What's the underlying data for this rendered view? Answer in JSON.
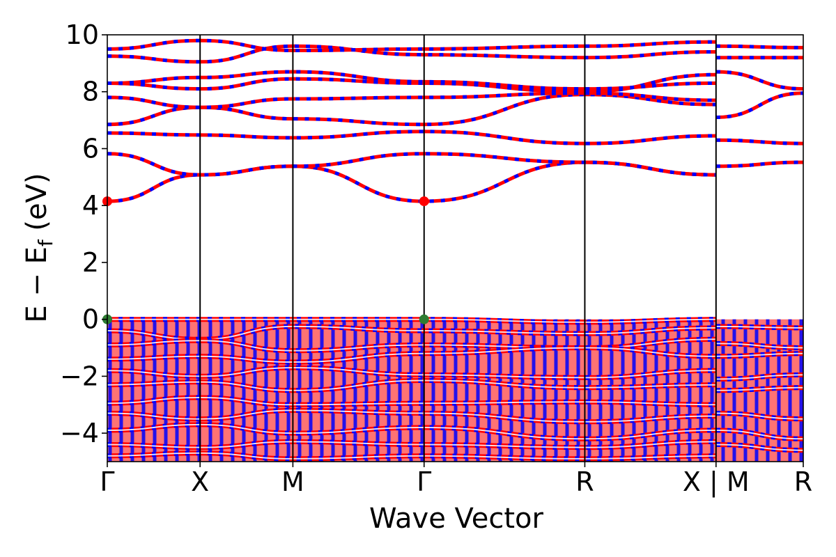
{
  "chart_data": {
    "type": "line",
    "title": "",
    "xlabel": "Wave Vector",
    "ylabel": "E − E",
    "ylabel_subscript": "f",
    "ylabel_unit": " (eV)",
    "ylim": [
      -5,
      10
    ],
    "yticks": [
      -4,
      -2,
      0,
      2,
      4,
      6,
      8,
      10
    ],
    "ytick_labels": [
      "−4",
      "−2",
      "0",
      "2",
      "4",
      "6",
      "8",
      "10"
    ],
    "xlim": [
      0,
      7.5
    ],
    "kpoints": [
      {
        "x": 0.0,
        "label": "Γ"
      },
      {
        "x": 1.0,
        "label": "X"
      },
      {
        "x": 2.0,
        "label": "M"
      },
      {
        "x": 3.414,
        "label": "Γ"
      },
      {
        "x": 5.146,
        "label": "R"
      },
      {
        "x": 6.56,
        "label": "X | M"
      },
      {
        "x": 7.5,
        "label": "R"
      }
    ],
    "grid": false,
    "legend": "none",
    "colors": {
      "spin_up": "#ff0000",
      "spin_down": "#0000ff",
      "vbm": "#2e7d32",
      "cbm": "#ff0000"
    },
    "band_gap_markers": {
      "vbm": [
        {
          "x": 0.0,
          "y": 0.0
        },
        {
          "x": 3.414,
          "y": 0.0
        }
      ],
      "cbm": [
        {
          "x": 0.0,
          "y": 4.15
        },
        {
          "x": 3.414,
          "y": 4.15
        }
      ]
    },
    "bands": [
      {
        "name": "",
        "x": [
          0,
          1,
          2,
          3.414,
          5.146,
          6.56
        ],
        "y": [
          4.15,
          5.08,
          5.38,
          4.15,
          5.52,
          5.08
        ]
      },
      {
        "name": "",
        "x": [
          6.56,
          7.5
        ],
        "y": [
          5.38,
          5.52
        ]
      },
      {
        "name": "",
        "x": [
          0,
          1,
          2,
          3.414,
          5.146,
          6.56
        ],
        "y": [
          5.82,
          5.08,
          5.38,
          5.82,
          5.52,
          5.08
        ]
      },
      {
        "name": "",
        "x": [
          0,
          1,
          2,
          3.414,
          5.146,
          6.56
        ],
        "y": [
          6.55,
          6.48,
          6.38,
          6.6,
          6.18,
          6.45
        ]
      },
      {
        "name": "",
        "x": [
          6.56,
          7.5
        ],
        "y": [
          6.3,
          6.18
        ]
      },
      {
        "name": "",
        "x": [
          0,
          1,
          2,
          3.414,
          5.146,
          6.56
        ],
        "y": [
          6.85,
          7.45,
          7.05,
          6.85,
          7.9,
          7.55
        ]
      },
      {
        "name": "",
        "x": [
          0,
          1,
          2,
          3.414,
          5.146,
          6.56
        ],
        "y": [
          7.8,
          7.45,
          7.75,
          7.8,
          7.95,
          7.7
        ]
      },
      {
        "name": "",
        "x": [
          0,
          1,
          2,
          3.414,
          5.146,
          6.56
        ],
        "y": [
          8.3,
          8.1,
          8.45,
          8.3,
          8.0,
          8.6
        ]
      },
      {
        "name": "",
        "x": [
          0,
          1,
          2,
          3.414,
          5.146,
          6.56
        ],
        "y": [
          8.3,
          8.5,
          8.7,
          8.35,
          8.1,
          8.3
        ]
      },
      {
        "name": "",
        "x": [
          6.56,
          7.5
        ],
        "y": [
          7.1,
          7.95
        ]
      },
      {
        "name": "",
        "x": [
          6.56,
          7.5
        ],
        "y": [
          8.7,
          8.1
        ]
      },
      {
        "name": "",
        "x": [
          0,
          1,
          2,
          3.414,
          5.146,
          6.56
        ],
        "y": [
          9.25,
          9.05,
          9.6,
          9.3,
          9.2,
          9.4
        ]
      },
      {
        "name": "",
        "x": [
          0,
          1,
          2,
          3.414,
          5.146,
          6.56
        ],
        "y": [
          9.5,
          9.8,
          9.45,
          9.5,
          9.6,
          9.75
        ]
      },
      {
        "name": "",
        "x": [
          6.56,
          7.5
        ],
        "y": [
          9.2,
          9.2
        ]
      },
      {
        "name": "",
        "x": [
          6.56,
          7.5
        ],
        "y": [
          9.6,
          9.55
        ]
      },
      {
        "name": "",
        "x": [
          0,
          1,
          2,
          3.414,
          5.146,
          6.56
        ],
        "y": [
          0.0,
          0.0,
          0.0,
          0.0,
          -0.1,
          0.0
        ]
      },
      {
        "name": "",
        "x": [
          0,
          1,
          2,
          3.414,
          5.146,
          6.56
        ],
        "y": [
          -0.4,
          -0.7,
          -0.25,
          -0.4,
          -0.5,
          -0.3
        ]
      },
      {
        "name": "",
        "x": [
          0,
          1,
          2,
          3.414,
          5.146,
          6.56
        ],
        "y": [
          -0.9,
          -0.75,
          -1.1,
          -0.9,
          -1.0,
          -0.7
        ]
      },
      {
        "name": "",
        "x": [
          0,
          1,
          2,
          3.414,
          5.146,
          6.56
        ],
        "y": [
          -1.4,
          -1.3,
          -1.5,
          -1.2,
          -1.0,
          -1.3
        ]
      },
      {
        "name": "",
        "x": [
          0,
          1,
          2,
          3.414,
          5.146,
          6.56
        ],
        "y": [
          -1.8,
          -2.0,
          -1.7,
          -1.95,
          -2.05,
          -1.8
        ]
      },
      {
        "name": "",
        "x": [
          0,
          1,
          2,
          3.414,
          5.146,
          6.56
        ],
        "y": [
          -2.3,
          -2.2,
          -2.5,
          -2.15,
          -2.4,
          -2.3
        ]
      },
      {
        "name": "",
        "x": [
          0,
          1,
          2,
          3.414,
          5.146,
          6.56
        ],
        "y": [
          -2.95,
          -2.75,
          -3.0,
          -2.95,
          -2.9,
          -3.0
        ]
      },
      {
        "name": "",
        "x": [
          0,
          1,
          2,
          3.414,
          5.146,
          6.56
        ],
        "y": [
          -3.3,
          -3.5,
          -3.2,
          -3.3,
          -3.6,
          -3.4
        ]
      },
      {
        "name": "",
        "x": [
          0,
          1,
          2,
          3.414,
          5.146,
          6.56
        ],
        "y": [
          -3.9,
          -3.7,
          -4.0,
          -3.8,
          -4.2,
          -3.9
        ]
      },
      {
        "name": "",
        "x": [
          0,
          1,
          2,
          3.414,
          5.146,
          6.56
        ],
        "y": [
          -4.4,
          -4.5,
          -4.3,
          -4.4,
          -4.5,
          -4.3
        ]
      },
      {
        "name": "",
        "x": [
          0,
          1,
          2,
          3.414,
          5.146,
          6.56
        ],
        "y": [
          -4.8,
          -4.7,
          -4.9,
          -4.8,
          -4.9,
          -4.8
        ]
      },
      {
        "name": "",
        "x": [
          6.56,
          7.5
        ],
        "y": [
          -0.25,
          -0.3
        ]
      },
      {
        "name": "",
        "x": [
          6.56,
          7.5
        ],
        "y": [
          -0.85,
          -1.0
        ]
      },
      {
        "name": "",
        "x": [
          6.56,
          7.5
        ],
        "y": [
          -1.3,
          -1.2
        ]
      },
      {
        "name": "",
        "x": [
          6.56,
          7.5
        ],
        "y": [
          -2.1,
          -1.95
        ]
      },
      {
        "name": "",
        "x": [
          6.56,
          7.5
        ],
        "y": [
          -2.5,
          -2.4
        ]
      },
      {
        "name": "",
        "x": [
          6.56,
          7.5
        ],
        "y": [
          -3.3,
          -3.5
        ]
      },
      {
        "name": "",
        "x": [
          6.56,
          7.5
        ],
        "y": [
          -3.9,
          -4.2
        ]
      },
      {
        "name": "",
        "x": [
          6.56,
          7.5
        ],
        "y": [
          -4.4,
          -4.6
        ]
      }
    ]
  }
}
